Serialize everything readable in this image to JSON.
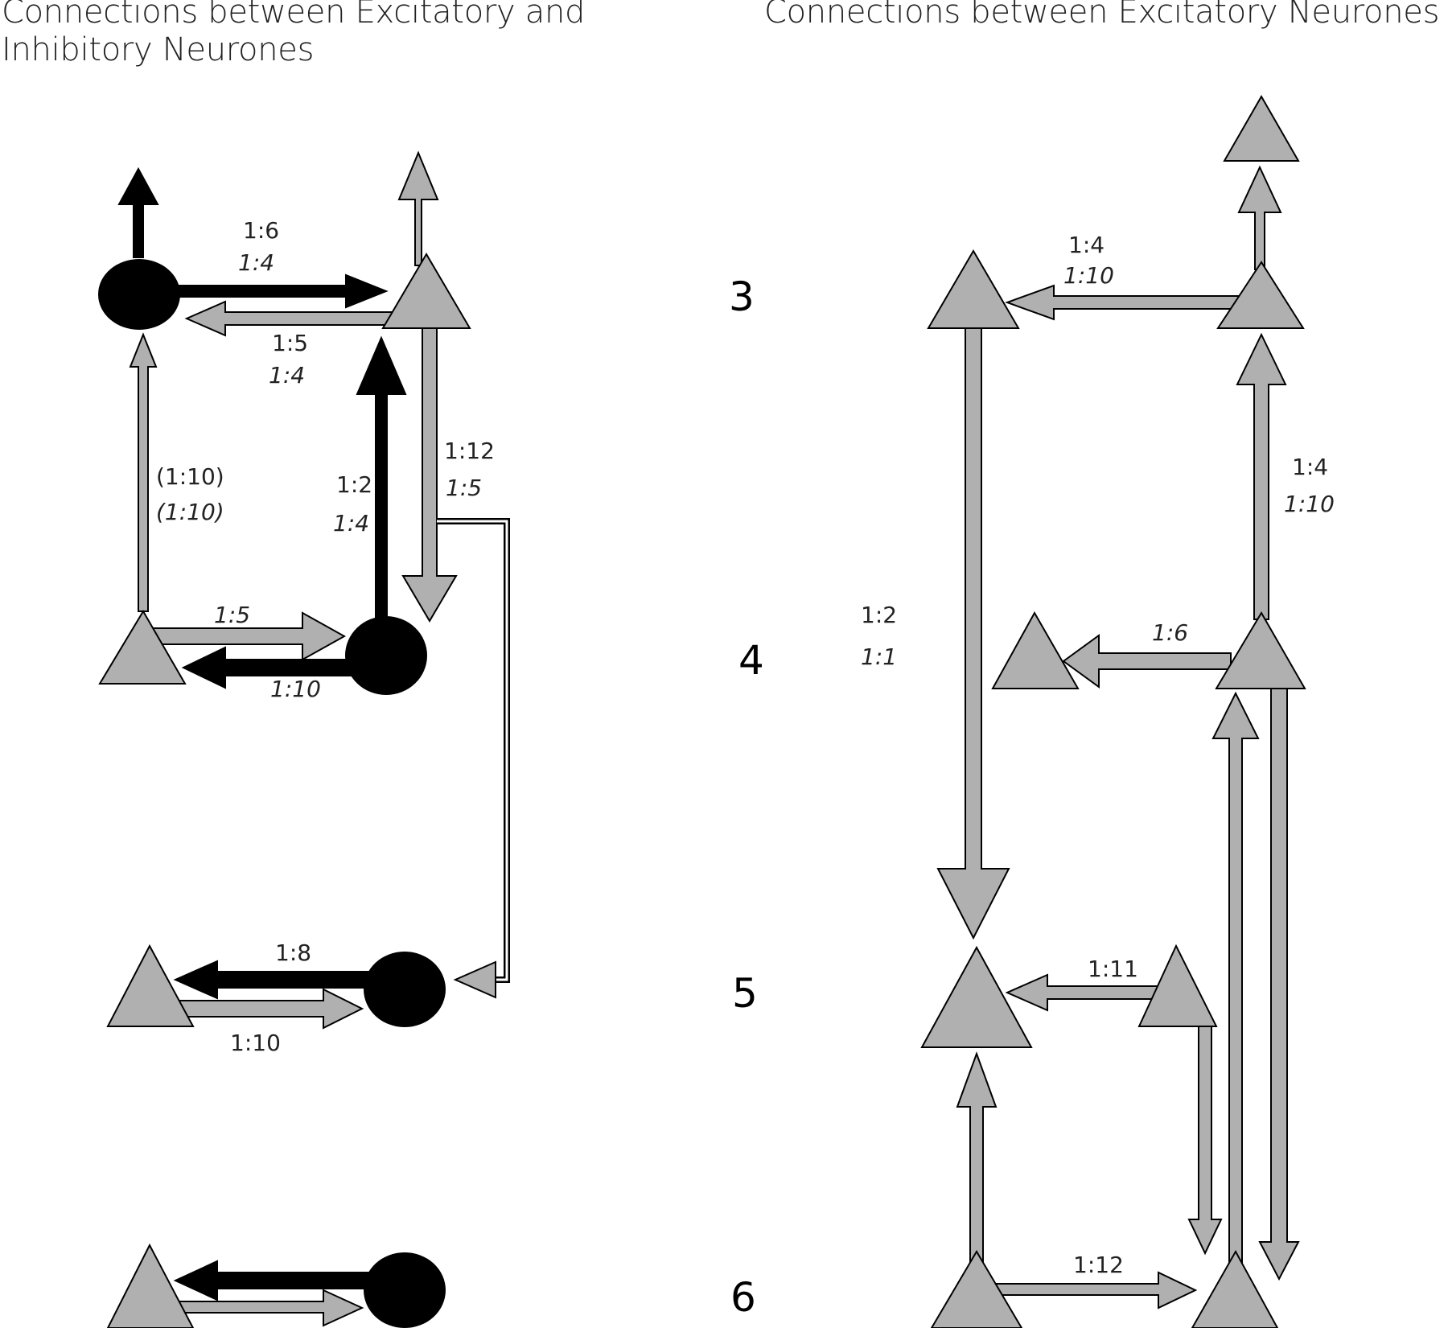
{
  "titles": {
    "left_line1": "Connections between Excitatory and",
    "left_line2": "Inhibitory Neurones",
    "right": "Connections between Excitatory Neurones"
  },
  "layers": [
    "3",
    "4",
    "5",
    "6"
  ],
  "left_labels": {
    "l3_inh_to_exc": "1:6",
    "l3_inh_to_exc_it": "1:4",
    "l3_exc_to_inh": "1:5",
    "l3_exc_to_inh_it": "1:4",
    "l4exc_to_l3inh": "(1:10)",
    "l4exc_to_l3inh_it": "(1:10)",
    "l4inh_to_l3exc": "1:2",
    "l4inh_to_l3exc_it": "1:4",
    "l3exc_to_l4": "1:12",
    "l3exc_to_l4_it": "1:5",
    "l4_exc_to_inh_it": "1:5",
    "l4_inh_to_exc_it": "1:10",
    "l5_inh_to_exc": "1:8",
    "l5_exc_to_inh": "1:10"
  },
  "right_labels": {
    "l3_to_l3": "1:4",
    "l3_to_l3_it": "1:10",
    "l4_to_l3": "1:4",
    "l4_to_l3_it": "1:10",
    "l3_to_l5": "1:2",
    "l3_to_l5_it": "1:1",
    "l4_to_l4_it": "1:6",
    "l5_to_l5": "1:11",
    "l6_to_l6": "1:12"
  },
  "colors": {
    "excitatory": "#b0b0b0",
    "inhibitory": "#000000",
    "outline": "#000000"
  },
  "icons": {
    "excitatory_neuron": "gray-triangle",
    "inhibitory_neuron": "black-circle"
  }
}
